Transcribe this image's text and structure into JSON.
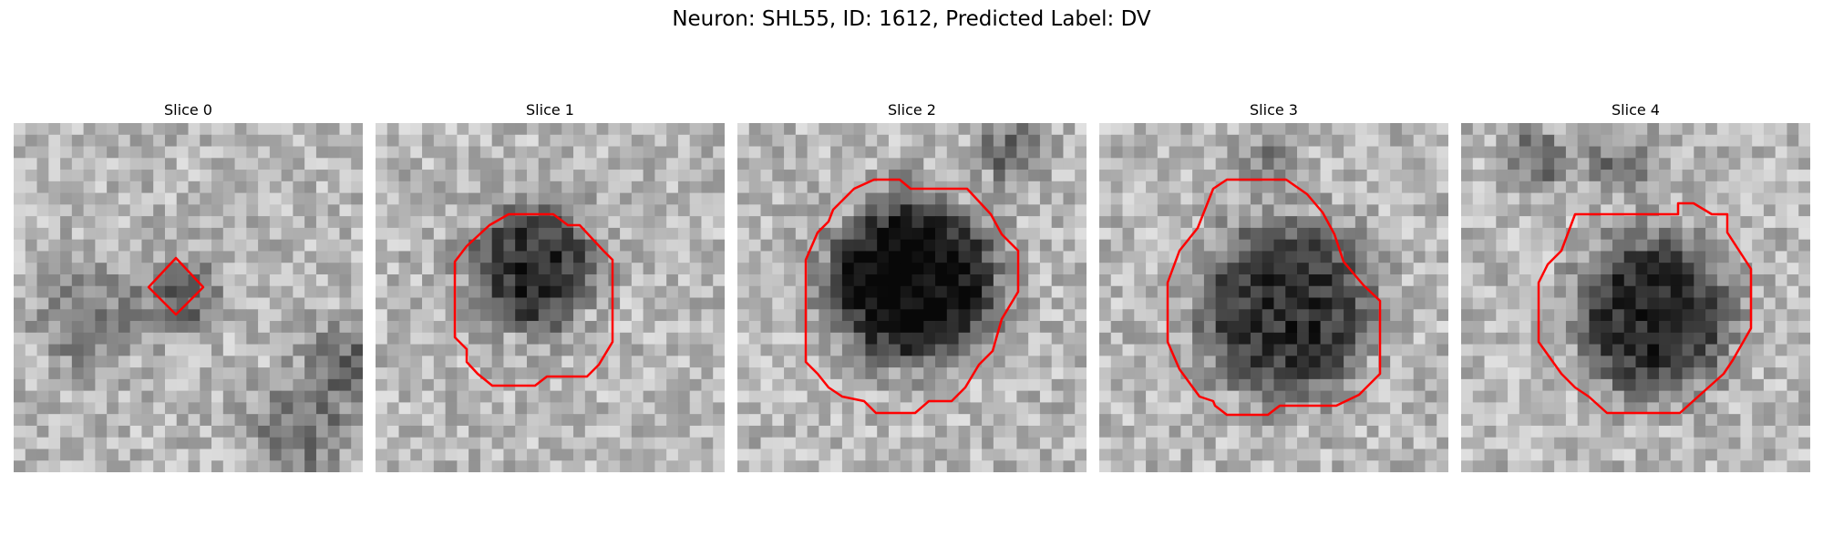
{
  "figure": {
    "title": "Neuron: SHL55, ID: 1612, Predicted Label: DV"
  },
  "panels": [
    {
      "title": "Slice 0"
    },
    {
      "title": "Slice 1"
    },
    {
      "title": "Slice 2"
    },
    {
      "title": "Slice 3"
    },
    {
      "title": "Slice 4"
    }
  ],
  "colors": {
    "contour": "#ff0000",
    "background": "#ffffff"
  }
}
